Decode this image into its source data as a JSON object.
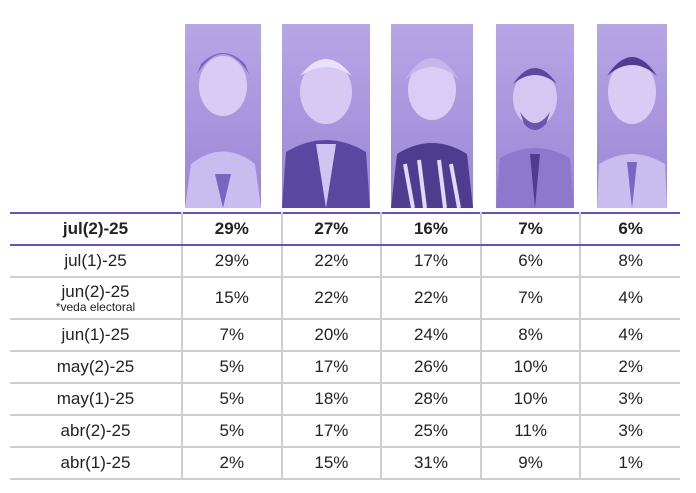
{
  "chart_data": {
    "type": "table",
    "series": [
      {
        "name": "",
        "values": [
          29,
          29,
          15,
          7,
          5,
          5,
          5,
          2
        ]
      },
      {
        "name": "",
        "values": [
          27,
          22,
          22,
          20,
          17,
          18,
          17,
          15
        ]
      },
      {
        "name": "",
        "values": [
          16,
          17,
          22,
          24,
          26,
          28,
          25,
          31
        ]
      },
      {
        "name": "",
        "values": [
          7,
          6,
          7,
          8,
          10,
          10,
          11,
          9
        ]
      },
      {
        "name": "",
        "values": [
          6,
          8,
          4,
          4,
          2,
          3,
          3,
          1
        ]
      }
    ],
    "rows": [
      {
        "date": "jul(2)-25",
        "note": "",
        "values": [
          "29%",
          "27%",
          "16%",
          "7%",
          "6%"
        ]
      },
      {
        "date": "jul(1)-25",
        "note": "",
        "values": [
          "29%",
          "22%",
          "17%",
          "6%",
          "8%"
        ]
      },
      {
        "date": "jun(2)-25",
        "note": "*veda electoral",
        "values": [
          "15%",
          "22%",
          "22%",
          "7%",
          "4%"
        ]
      },
      {
        "date": "jun(1)-25",
        "note": "",
        "values": [
          "7%",
          "20%",
          "24%",
          "8%",
          "4%"
        ]
      },
      {
        "date": "may(2)-25",
        "note": "",
        "values": [
          "5%",
          "17%",
          "26%",
          "10%",
          "2%"
        ]
      },
      {
        "date": "may(1)-25",
        "note": "",
        "values": [
          "5%",
          "18%",
          "28%",
          "10%",
          "3%"
        ]
      },
      {
        "date": "abr(2)-25",
        "note": "",
        "values": [
          "5%",
          "17%",
          "25%",
          "11%",
          "3%"
        ]
      },
      {
        "date": "abr(1)-25",
        "note": "",
        "values": [
          "2%",
          "15%",
          "31%",
          "9%",
          "1%"
        ]
      }
    ],
    "header_photos": [
      "candidate-photo",
      "candidate-photo",
      "candidate-photo",
      "candidate-photo",
      "candidate-photo"
    ],
    "colors": {
      "accent": "#6b4fc2",
      "photo_tint": "#a08ddb",
      "grid": "#cfcfcf"
    }
  }
}
